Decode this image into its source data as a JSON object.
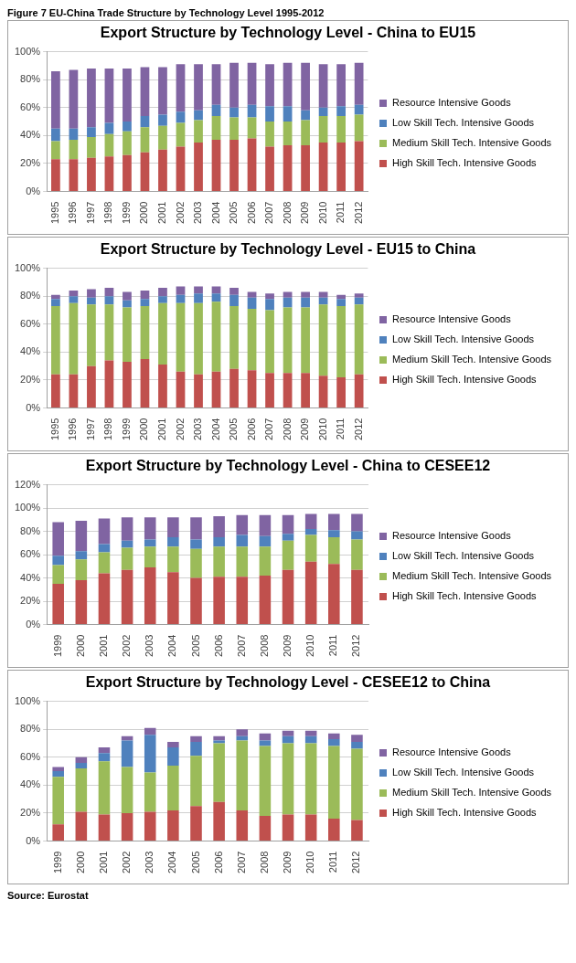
{
  "chart_data": [
    {
      "type": "bar",
      "stacked": true,
      "title": "Export Structure by Technology Level - China to EU15",
      "annotations": [
        "Figure 7 EU-China Trade Structure by Technology Level 1995-2012"
      ],
      "categories": [
        "1995",
        "1996",
        "1997",
        "1998",
        "1999",
        "2000",
        "2001",
        "2002",
        "2003",
        "2004",
        "2005",
        "2006",
        "2007",
        "2008",
        "2009",
        "2010",
        "2011",
        "2012"
      ],
      "series": [
        {
          "name": "High Skill Tech. Intensive Goods",
          "color": "#c0504d",
          "values": [
            23,
            23,
            24,
            25,
            26,
            28,
            30,
            32,
            35,
            37,
            37,
            38,
            32,
            33,
            33,
            35,
            35,
            36
          ]
        },
        {
          "name": "Medium Skill Tech. Intensive Goods",
          "color": "#9bbb59",
          "values": [
            13,
            14,
            15,
            16,
            17,
            18,
            17,
            17,
            16,
            17,
            16,
            15,
            18,
            17,
            18,
            19,
            19,
            19
          ]
        },
        {
          "name": "Low Skill Tech. Intensive Goods",
          "color": "#4f81bd",
          "values": [
            9,
            8,
            7,
            8,
            7,
            8,
            8,
            8,
            7,
            8,
            7,
            9,
            11,
            11,
            7,
            6,
            7,
            7
          ]
        },
        {
          "name": "Resource Intensive Goods",
          "color": "#8064a2",
          "values": [
            41,
            42,
            42,
            39,
            38,
            35,
            34,
            34,
            33,
            29,
            32,
            30,
            30,
            31,
            34,
            31,
            30,
            30
          ]
        }
      ],
      "ylim": [
        0,
        100
      ],
      "yticks": [
        {
          "value": 0,
          "label": "0%"
        },
        {
          "value": 20,
          "label": "20%"
        },
        {
          "value": 40,
          "label": "40%"
        },
        {
          "value": 60,
          "label": "60%"
        },
        {
          "value": 80,
          "label": "80%"
        },
        {
          "value": 100,
          "label": "100%"
        }
      ],
      "grid": "y",
      "legend": "right"
    },
    {
      "type": "bar",
      "stacked": true,
      "title": "Export Structure by Technology Level - EU15 to China",
      "categories": [
        "1995",
        "1996",
        "1997",
        "1998",
        "1999",
        "2000",
        "2001",
        "2002",
        "2003",
        "2004",
        "2005",
        "2006",
        "2007",
        "2008",
        "2009",
        "2010",
        "2011",
        "2012"
      ],
      "series": [
        {
          "name": "High Skill Tech. Intensive Goods",
          "color": "#c0504d",
          "values": [
            24,
            24,
            30,
            34,
            33,
            35,
            31,
            26,
            24,
            26,
            28,
            27,
            25,
            25,
            25,
            23,
            22,
            24
          ]
        },
        {
          "name": "Medium Skill Tech. Intensive Goods",
          "color": "#9bbb59",
          "values": [
            49,
            51,
            44,
            40,
            39,
            38,
            44,
            49,
            51,
            50,
            45,
            44,
            45,
            47,
            47,
            51,
            51,
            50
          ]
        },
        {
          "name": "Low Skill Tech. Intensive Goods",
          "color": "#4f81bd",
          "values": [
            5,
            5,
            5,
            6,
            5,
            5,
            5,
            6,
            7,
            6,
            8,
            8,
            8,
            7,
            7,
            5,
            5,
            5
          ]
        },
        {
          "name": "Resource Intensive Goods",
          "color": "#8064a2",
          "values": [
            3,
            4,
            6,
            6,
            6,
            6,
            6,
            6,
            5,
            5,
            5,
            4,
            4,
            4,
            4,
            4,
            3,
            3
          ]
        }
      ],
      "ylim": [
        0,
        100
      ],
      "yticks": [
        {
          "value": 0,
          "label": "0%"
        },
        {
          "value": 20,
          "label": "20%"
        },
        {
          "value": 40,
          "label": "40%"
        },
        {
          "value": 60,
          "label": "60%"
        },
        {
          "value": 80,
          "label": "80%"
        },
        {
          "value": 100,
          "label": "100%"
        }
      ],
      "grid": "y",
      "legend": "right"
    },
    {
      "type": "bar",
      "stacked": true,
      "title": "Export Structure by Technology Level - China to CESEE12",
      "categories": [
        "1999",
        "2000",
        "2001",
        "2002",
        "2003",
        "2004",
        "2005",
        "2006",
        "2007",
        "2008",
        "2009",
        "2010",
        "2011",
        "2012"
      ],
      "series": [
        {
          "name": "High Skill Tech. Intensive Goods",
          "color": "#c0504d",
          "values": [
            35,
            38,
            44,
            47,
            49,
            45,
            40,
            41,
            41,
            42,
            47,
            54,
            52,
            47
          ]
        },
        {
          "name": "Medium Skill Tech. Intensive Goods",
          "color": "#9bbb59",
          "values": [
            16,
            18,
            18,
            19,
            18,
            22,
            25,
            26,
            26,
            25,
            25,
            23,
            23,
            26
          ]
        },
        {
          "name": "Low Skill Tech. Intensive Goods",
          "color": "#4f81bd",
          "values": [
            8,
            7,
            7,
            6,
            6,
            8,
            8,
            8,
            10,
            9,
            6,
            5,
            6,
            7
          ]
        },
        {
          "name": "Resource Intensive Goods",
          "color": "#8064a2",
          "values": [
            29,
            26,
            22,
            20,
            19,
            17,
            19,
            18,
            17,
            18,
            16,
            13,
            14,
            15
          ]
        }
      ],
      "ylim": [
        0,
        120
      ],
      "yticks": [
        {
          "value": 0,
          "label": "0%"
        },
        {
          "value": 20,
          "label": "20%"
        },
        {
          "value": 40,
          "label": "40%"
        },
        {
          "value": 60,
          "label": "60%"
        },
        {
          "value": 80,
          "label": "80%"
        },
        {
          "value": 100,
          "label": "100%"
        },
        {
          "value": 120,
          "label": "120%"
        }
      ],
      "grid": "y",
      "legend": "right"
    },
    {
      "type": "bar",
      "stacked": true,
      "title": "Export Structure by Technology Level - CESEE12 to China",
      "annotations": [
        "Source: Eurostat"
      ],
      "categories": [
        "1999",
        "2000",
        "2001",
        "2002",
        "2003",
        "2004",
        "2005",
        "2006",
        "2007",
        "2008",
        "2009",
        "2010",
        "2011",
        "2012"
      ],
      "series": [
        {
          "name": "High Skill Tech. Intensive Goods",
          "color": "#c0504d",
          "values": [
            12,
            21,
            19,
            20,
            21,
            22,
            25,
            28,
            22,
            18,
            19,
            19,
            16,
            15
          ]
        },
        {
          "name": "Medium Skill Tech. Intensive Goods",
          "color": "#9bbb59",
          "values": [
            34,
            31,
            38,
            33,
            28,
            32,
            36,
            42,
            50,
            50,
            51,
            51,
            52,
            51
          ]
        },
        {
          "name": "Low Skill Tech. Intensive Goods",
          "color": "#4f81bd",
          "values": [
            4,
            4,
            6,
            19,
            27,
            13,
            10,
            2,
            3,
            4,
            5,
            5,
            5,
            5
          ]
        },
        {
          "name": "Resource Intensive Goods",
          "color": "#8064a2",
          "values": [
            3,
            4,
            4,
            3,
            5,
            4,
            4,
            3,
            5,
            5,
            4,
            4,
            4,
            5
          ]
        }
      ],
      "ylim": [
        0,
        100
      ],
      "yticks": [
        {
          "value": 0,
          "label": "0%"
        },
        {
          "value": 20,
          "label": "20%"
        },
        {
          "value": 40,
          "label": "40%"
        },
        {
          "value": 60,
          "label": "60%"
        },
        {
          "value": 80,
          "label": "80%"
        },
        {
          "value": 100,
          "label": "100%"
        }
      ],
      "grid": "y",
      "legend": "right"
    }
  ]
}
